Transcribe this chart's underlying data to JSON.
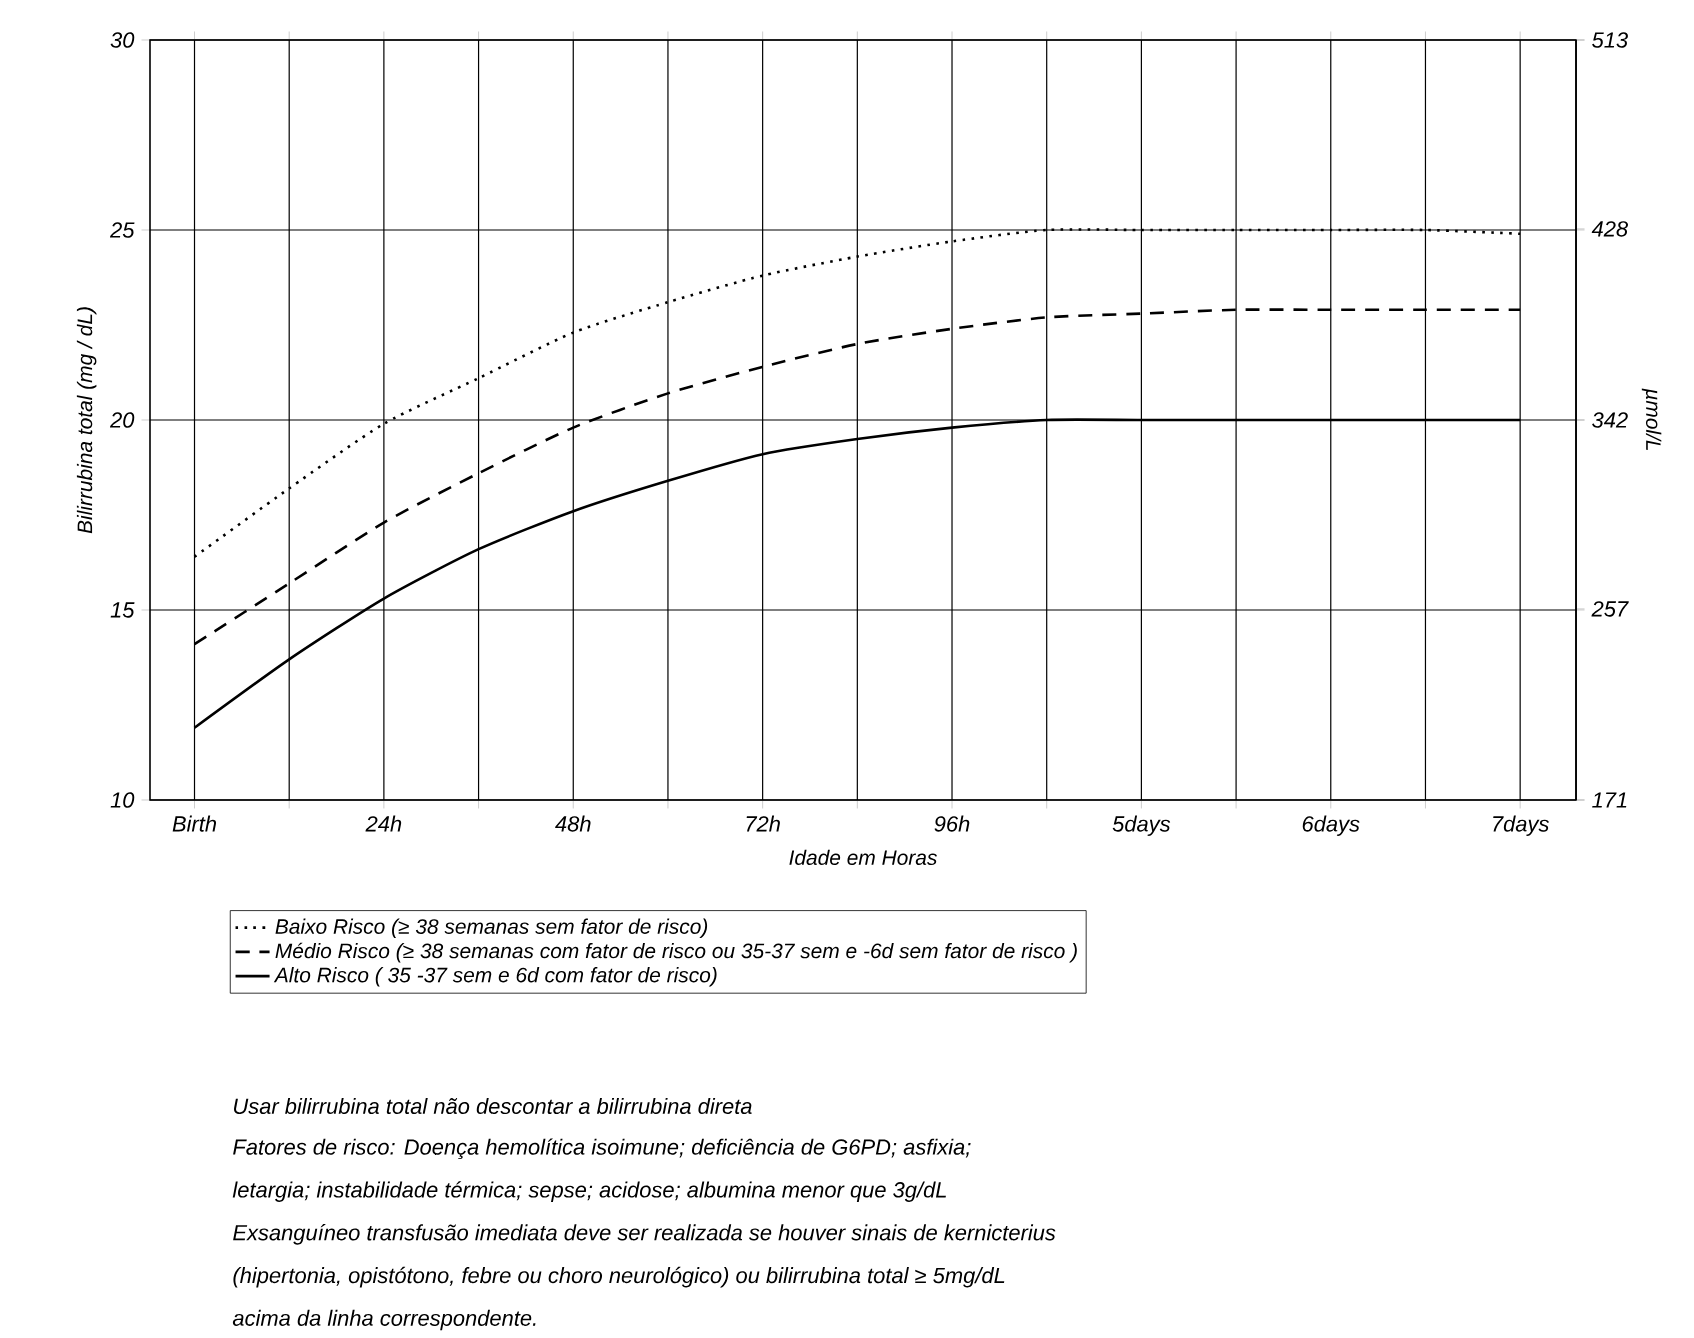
{
  "chart_data": {
    "type": "line",
    "xlabel": "Idade em Horas",
    "ylabel": "Bilirrubina total (mg / dL)",
    "y2label": "µmol/L",
    "categories": [
      "Birth",
      null,
      "24h",
      null,
      "48h",
      null,
      "72h",
      null,
      "96h",
      null,
      "5days",
      null,
      "6days",
      null,
      "7days"
    ],
    "ylim": [
      10,
      30
    ],
    "yticks": [
      10,
      15,
      20,
      25,
      30
    ],
    "y2lim": [
      171,
      513
    ],
    "y2ticks": [
      171,
      257,
      342,
      428,
      513
    ],
    "grid": true,
    "legend": "bottom",
    "series": [
      {
        "name": "Baixo Risco (≥ 38 semanas sem fator de risco)",
        "color": "#000000",
        "line_style": "dotted",
        "values": [
          16.4,
          18.2,
          19.9,
          21.1,
          22.3,
          23.1,
          23.8,
          24.3,
          24.7,
          25.0,
          25.0,
          25.0,
          25.0,
          25.0,
          24.9
        ]
      },
      {
        "name": "Médio Risco (≥ 38 semanas com fator de risco ou 35-37 sem e -6d sem fator de risco )",
        "color": "#000000",
        "line_style": "dashed",
        "values": [
          14.1,
          15.7,
          17.3,
          18.6,
          19.8,
          20.7,
          21.4,
          22.0,
          22.4,
          22.7,
          22.8,
          22.9,
          22.9,
          22.9,
          22.9
        ]
      },
      {
        "name": "Alto Risco ( 35 -37 sem e 6d com fator de risco)",
        "color": "#000000",
        "line_style": "solid",
        "values": [
          11.9,
          13.7,
          15.3,
          16.6,
          17.6,
          18.4,
          19.1,
          19.5,
          19.8,
          20.0,
          20.0,
          20.0,
          20.0,
          20.0,
          20.0
        ]
      }
    ],
    "annotations": [
      "Usar bilirrubina total não descontar a bilirrubina direta",
      "Fatores de risco: Doença hemolítica isoimune; deficiência de G6PD; asfixia;",
      "letargia; instabilidade térmica; sepse; acidose; albumina menor que 3g/dL",
      "Exsanguíneo transfusão imediata deve ser realizada se houver sinais de kernicterius",
      "(hipertonia, opistótono, febre ou choro neurológico) ou bilirrubina total ≥ 5mg/dL",
      "acima da linha correspondente."
    ]
  }
}
